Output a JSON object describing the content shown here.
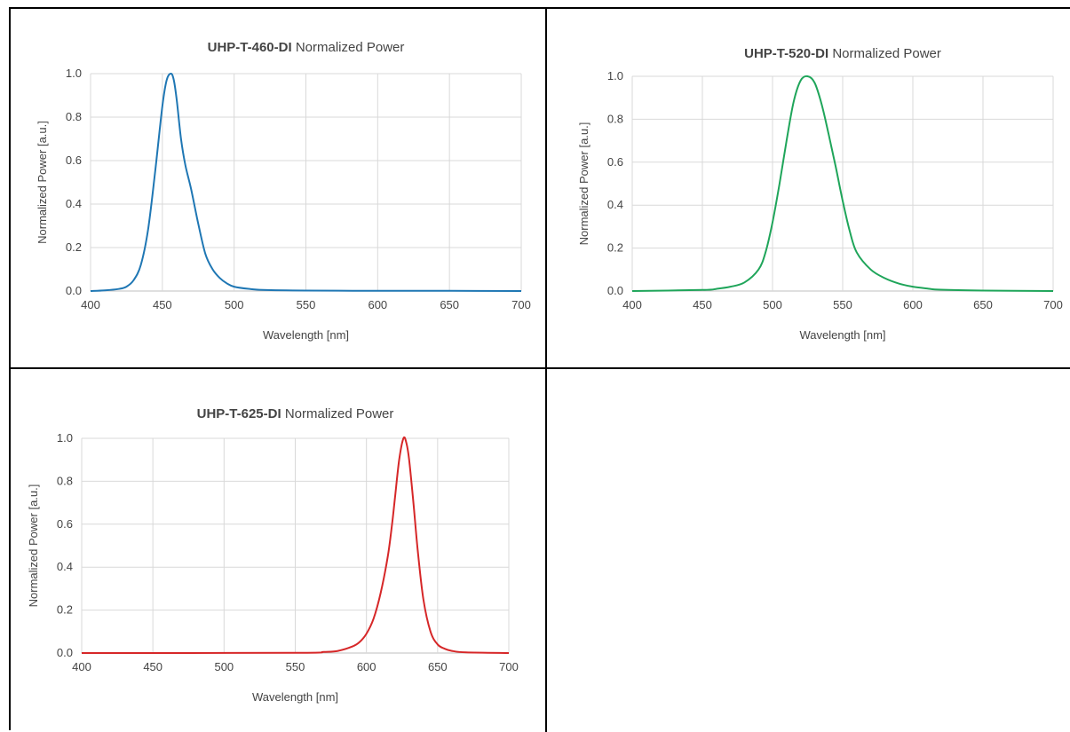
{
  "chart_data": [
    {
      "type": "line",
      "title_bold": "UHP-T-460-DI",
      "title_rest": " Normalized Power",
      "xlabel": "Wavelength [nm]",
      "ylabel": "Normalized Power [a.u.]",
      "xlim": [
        400,
        700
      ],
      "ylim": [
        0,
        1.0
      ],
      "xticks": [
        "400",
        "450",
        "500",
        "550",
        "600",
        "650",
        "700"
      ],
      "yticks": [
        "0.0",
        "0.2",
        "0.4",
        "0.6",
        "0.8",
        "1.0"
      ],
      "grid": true,
      "color": "#1f77b4",
      "series": [
        {
          "x": [
            400,
            410,
            420,
            425,
            430,
            435,
            440,
            445,
            450,
            453,
            456,
            458,
            460,
            463,
            466,
            470,
            475,
            480,
            485,
            490,
            495,
            500,
            510,
            520,
            550,
            600,
            650,
            700
          ],
          "y": [
            0.0,
            0.003,
            0.01,
            0.02,
            0.05,
            0.12,
            0.28,
            0.55,
            0.85,
            0.97,
            1.0,
            0.97,
            0.88,
            0.7,
            0.58,
            0.47,
            0.31,
            0.17,
            0.1,
            0.06,
            0.035,
            0.02,
            0.01,
            0.005,
            0.002,
            0.001,
            0.001,
            0.0
          ]
        }
      ]
    },
    {
      "type": "line",
      "title_bold": "UHP-T-520-DI",
      "title_rest": " Normalized Power",
      "xlabel": "Wavelength [nm]",
      "ylabel": "Normalized Power [a.u.]",
      "xlim": [
        400,
        700
      ],
      "ylim": [
        0,
        1.0
      ],
      "xticks": [
        "400",
        "450",
        "500",
        "550",
        "600",
        "650",
        "700"
      ],
      "yticks": [
        "0.0",
        "0.2",
        "0.4",
        "0.6",
        "0.8",
        "1.0"
      ],
      "grid": true,
      "color": "#1fa55a",
      "series": [
        {
          "x": [
            400,
            450,
            460,
            470,
            480,
            490,
            495,
            500,
            505,
            510,
            515,
            520,
            525,
            530,
            535,
            540,
            545,
            550,
            555,
            560,
            570,
            580,
            590,
            600,
            610,
            620,
            650,
            700
          ],
          "y": [
            0.0,
            0.005,
            0.01,
            0.02,
            0.04,
            0.1,
            0.18,
            0.32,
            0.5,
            0.7,
            0.88,
            0.98,
            1.0,
            0.97,
            0.87,
            0.73,
            0.58,
            0.42,
            0.28,
            0.18,
            0.1,
            0.06,
            0.035,
            0.02,
            0.012,
            0.006,
            0.002,
            0.0
          ]
        }
      ]
    },
    {
      "type": "line",
      "title_bold": "UHP-T-625-DI",
      "title_rest": " Normalized Power",
      "xlabel": "Wavelength [nm]",
      "ylabel": "Normalized Power [a.u.]",
      "xlim": [
        400,
        700
      ],
      "ylim": [
        0,
        1.0
      ],
      "xticks": [
        "400",
        "450",
        "500",
        "550",
        "600",
        "650",
        "700"
      ],
      "yticks": [
        "0.0",
        "0.2",
        "0.4",
        "0.6",
        "0.8",
        "1.0"
      ],
      "grid": true,
      "color": "#d62728",
      "series": [
        {
          "x": [
            400,
            550,
            570,
            580,
            590,
            595,
            600,
            605,
            610,
            615,
            618,
            620,
            623,
            626,
            628,
            630,
            633,
            636,
            640,
            645,
            650,
            655,
            660,
            670,
            700
          ],
          "y": [
            0.0,
            0.001,
            0.005,
            0.01,
            0.03,
            0.05,
            0.09,
            0.16,
            0.28,
            0.45,
            0.6,
            0.72,
            0.9,
            1.0,
            0.98,
            0.9,
            0.7,
            0.48,
            0.25,
            0.1,
            0.04,
            0.02,
            0.01,
            0.003,
            0.0
          ]
        }
      ]
    }
  ]
}
